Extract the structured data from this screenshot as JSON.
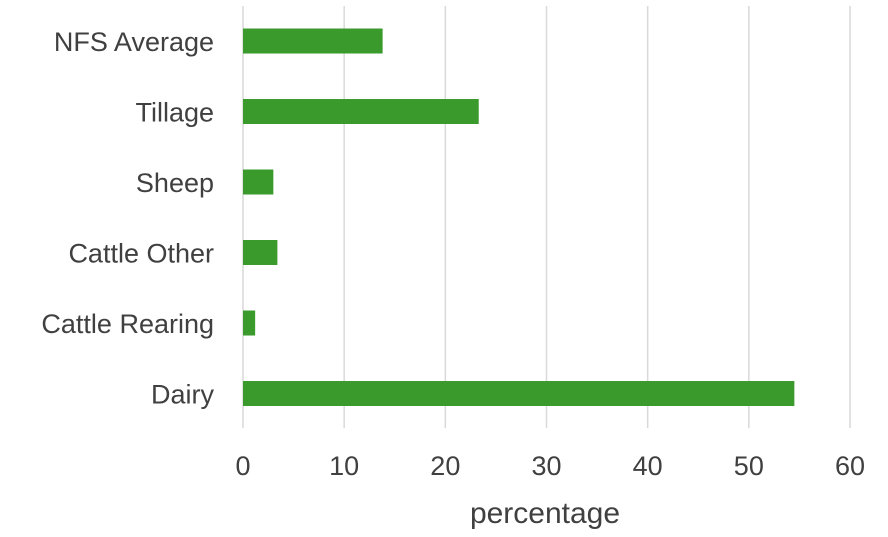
{
  "chart_data": {
    "type": "bar",
    "orientation": "horizontal",
    "categories": [
      "NFS Average",
      "Tillage",
      "Sheep",
      "Cattle Other",
      "Cattle Rearing",
      "Dairy"
    ],
    "values": [
      13.8,
      23.3,
      3.0,
      3.4,
      1.2,
      54.5
    ],
    "title": "",
    "xlabel": "percentage",
    "ylabel": "",
    "xlim": [
      0,
      60
    ],
    "x_ticks": [
      "0",
      "10",
      "20",
      "30",
      "40",
      "50",
      "60"
    ],
    "grid": "vertical",
    "legend": "none",
    "bar_color": "#3a9a2b",
    "grid_color": "#d9d9d9"
  }
}
